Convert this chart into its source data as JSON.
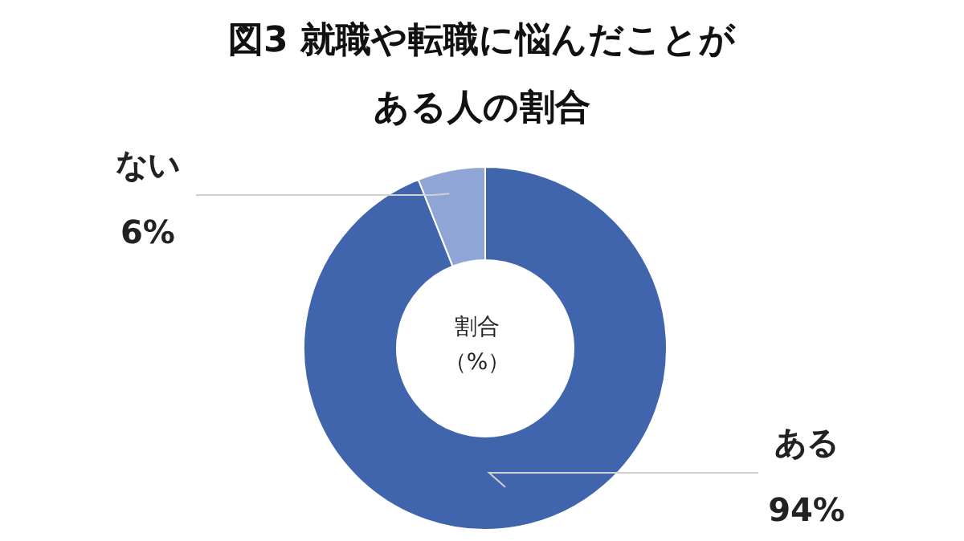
{
  "chart_data": {
    "type": "donut",
    "title": "図3 就職や転職に悩んだことがある人の割合",
    "categories": [
      "ある",
      "ない"
    ],
    "values": [
      94,
      6
    ],
    "colors": [
      "#4065ad",
      "#8ea5d6"
    ],
    "value_labels": [
      "94%",
      "6%"
    ],
    "annotations": [
      "割合",
      "（%）"
    ]
  }
}
